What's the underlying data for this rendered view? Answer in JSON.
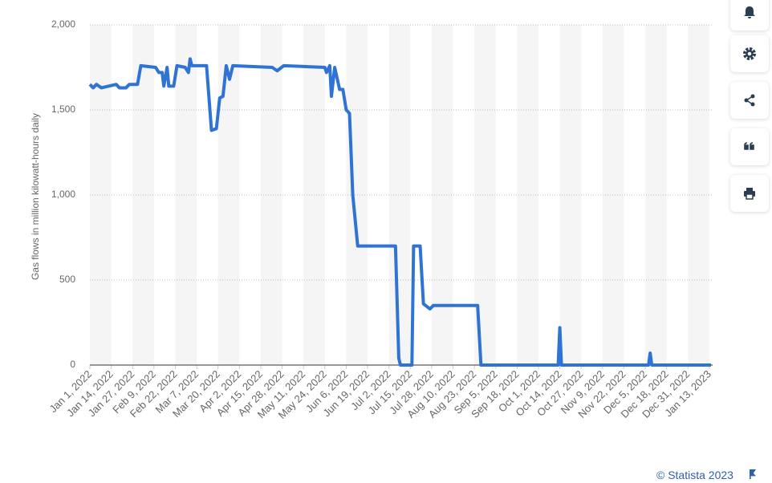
{
  "chart_data": {
    "type": "line",
    "y_label": "Gas flows in million kilowatt-hours daily",
    "source": "© Statista 2023",
    "color": "#2f73d4",
    "x": [
      "2022-01-01",
      "2022-01-03",
      "2022-01-05",
      "2022-01-08",
      "2022-01-17",
      "2022-01-19",
      "2022-01-23",
      "2022-01-25",
      "2022-01-30",
      "2022-02-01",
      "2022-02-10",
      "2022-02-12",
      "2022-02-14",
      "2022-02-15",
      "2022-02-17",
      "2022-02-18",
      "2022-02-21",
      "2022-02-23",
      "2022-02-28",
      "2022-03-02",
      "2022-03-03",
      "2022-03-04",
      "2022-03-13",
      "2022-03-16",
      "2022-03-19",
      "2022-03-21",
      "2022-03-23",
      "2022-03-25",
      "2022-03-27",
      "2022-03-29",
      "2022-04-22",
      "2022-04-25",
      "2022-04-29",
      "2022-05-24",
      "2022-05-25",
      "2022-05-27",
      "2022-05-28",
      "2022-05-30",
      "2022-06-02",
      "2022-06-04",
      "2022-06-06",
      "2022-06-08",
      "2022-06-10",
      "2022-06-13",
      "2022-07-04",
      "2022-07-06",
      "2022-07-08",
      "2022-07-09",
      "2022-07-16",
      "2022-07-17",
      "2022-07-21",
      "2022-07-23",
      "2022-07-27",
      "2022-07-29",
      "2022-08-25",
      "2022-08-27",
      "2022-10-13",
      "2022-10-14",
      "2022-10-15",
      "2022-12-07",
      "2022-12-08",
      "2022-12-09",
      "2023-01-14"
    ],
    "values": [
      1650,
      1630,
      1650,
      1630,
      1650,
      1630,
      1630,
      1650,
      1650,
      1760,
      1750,
      1720,
      1720,
      1640,
      1750,
      1640,
      1640,
      1760,
      1750,
      1720,
      1800,
      1760,
      1760,
      1380,
      1390,
      1570,
      1580,
      1760,
      1680,
      1760,
      1750,
      1730,
      1760,
      1750,
      1720,
      1760,
      1580,
      1750,
      1620,
      1620,
      1500,
      1480,
      1000,
      700,
      700,
      700,
      40,
      0,
      0,
      700,
      700,
      360,
      330,
      350,
      350,
      0,
      0,
      220,
      0,
      0,
      70,
      0,
      0
    ],
    "xlim": [
      "2022-01-01",
      "2023-01-15"
    ],
    "xticks": [
      {
        "value": "2022-01-01",
        "label": "Jan 1, 2022"
      },
      {
        "value": "2022-01-14",
        "label": "Jan 14, 2022"
      },
      {
        "value": "2022-01-27",
        "label": "Jan 27, 2022"
      },
      {
        "value": "2022-02-09",
        "label": "Feb 9, 2022"
      },
      {
        "value": "2022-02-22",
        "label": "Feb 22, 2022"
      },
      {
        "value": "2022-03-07",
        "label": "Mar 7, 2022"
      },
      {
        "value": "2022-03-20",
        "label": "Mar 20, 2022"
      },
      {
        "value": "2022-04-02",
        "label": "Apr 2, 2022"
      },
      {
        "value": "2022-04-15",
        "label": "Apr 15, 2022"
      },
      {
        "value": "2022-04-28",
        "label": "Apr 28, 2022"
      },
      {
        "value": "2022-05-11",
        "label": "May 11, 2022"
      },
      {
        "value": "2022-05-24",
        "label": "May 24, 2022"
      },
      {
        "value": "2022-06-06",
        "label": "Jun 6, 2022"
      },
      {
        "value": "2022-06-19",
        "label": "Jun 19, 2022"
      },
      {
        "value": "2022-07-02",
        "label": "Jul 2, 2022"
      },
      {
        "value": "2022-07-15",
        "label": "Jul 15, 2022"
      },
      {
        "value": "2022-07-28",
        "label": "Jul 28, 2022"
      },
      {
        "value": "2022-08-10",
        "label": "Aug 10, 2022"
      },
      {
        "value": "2022-08-23",
        "label": "Aug 23, 2022"
      },
      {
        "value": "2022-09-05",
        "label": "Sep 5, 2022"
      },
      {
        "value": "2022-09-18",
        "label": "Sep 18, 2022"
      },
      {
        "value": "2022-10-01",
        "label": "Oct 1, 2022"
      },
      {
        "value": "2022-10-14",
        "label": "Oct 14, 2022"
      },
      {
        "value": "2022-10-27",
        "label": "Oct 27, 2022"
      },
      {
        "value": "2022-11-09",
        "label": "Nov 9, 2022"
      },
      {
        "value": "2022-11-22",
        "label": "Nov 22, 2022"
      },
      {
        "value": "2022-12-05",
        "label": "Dec 5, 2022"
      },
      {
        "value": "2022-12-18",
        "label": "Dec 18, 2022"
      },
      {
        "value": "2022-12-31",
        "label": "Dec 31, 2022"
      },
      {
        "value": "2023-01-13",
        "label": "Jan 13, 2023"
      }
    ],
    "ylim": [
      0,
      2000
    ],
    "yticks": [
      0,
      500,
      {
        "value": 1000,
        "label": "1,000"
      },
      {
        "value": 1500,
        "label": "1,500"
      },
      {
        "value": 2000,
        "label": "2,000"
      }
    ],
    "grid": true
  }
}
